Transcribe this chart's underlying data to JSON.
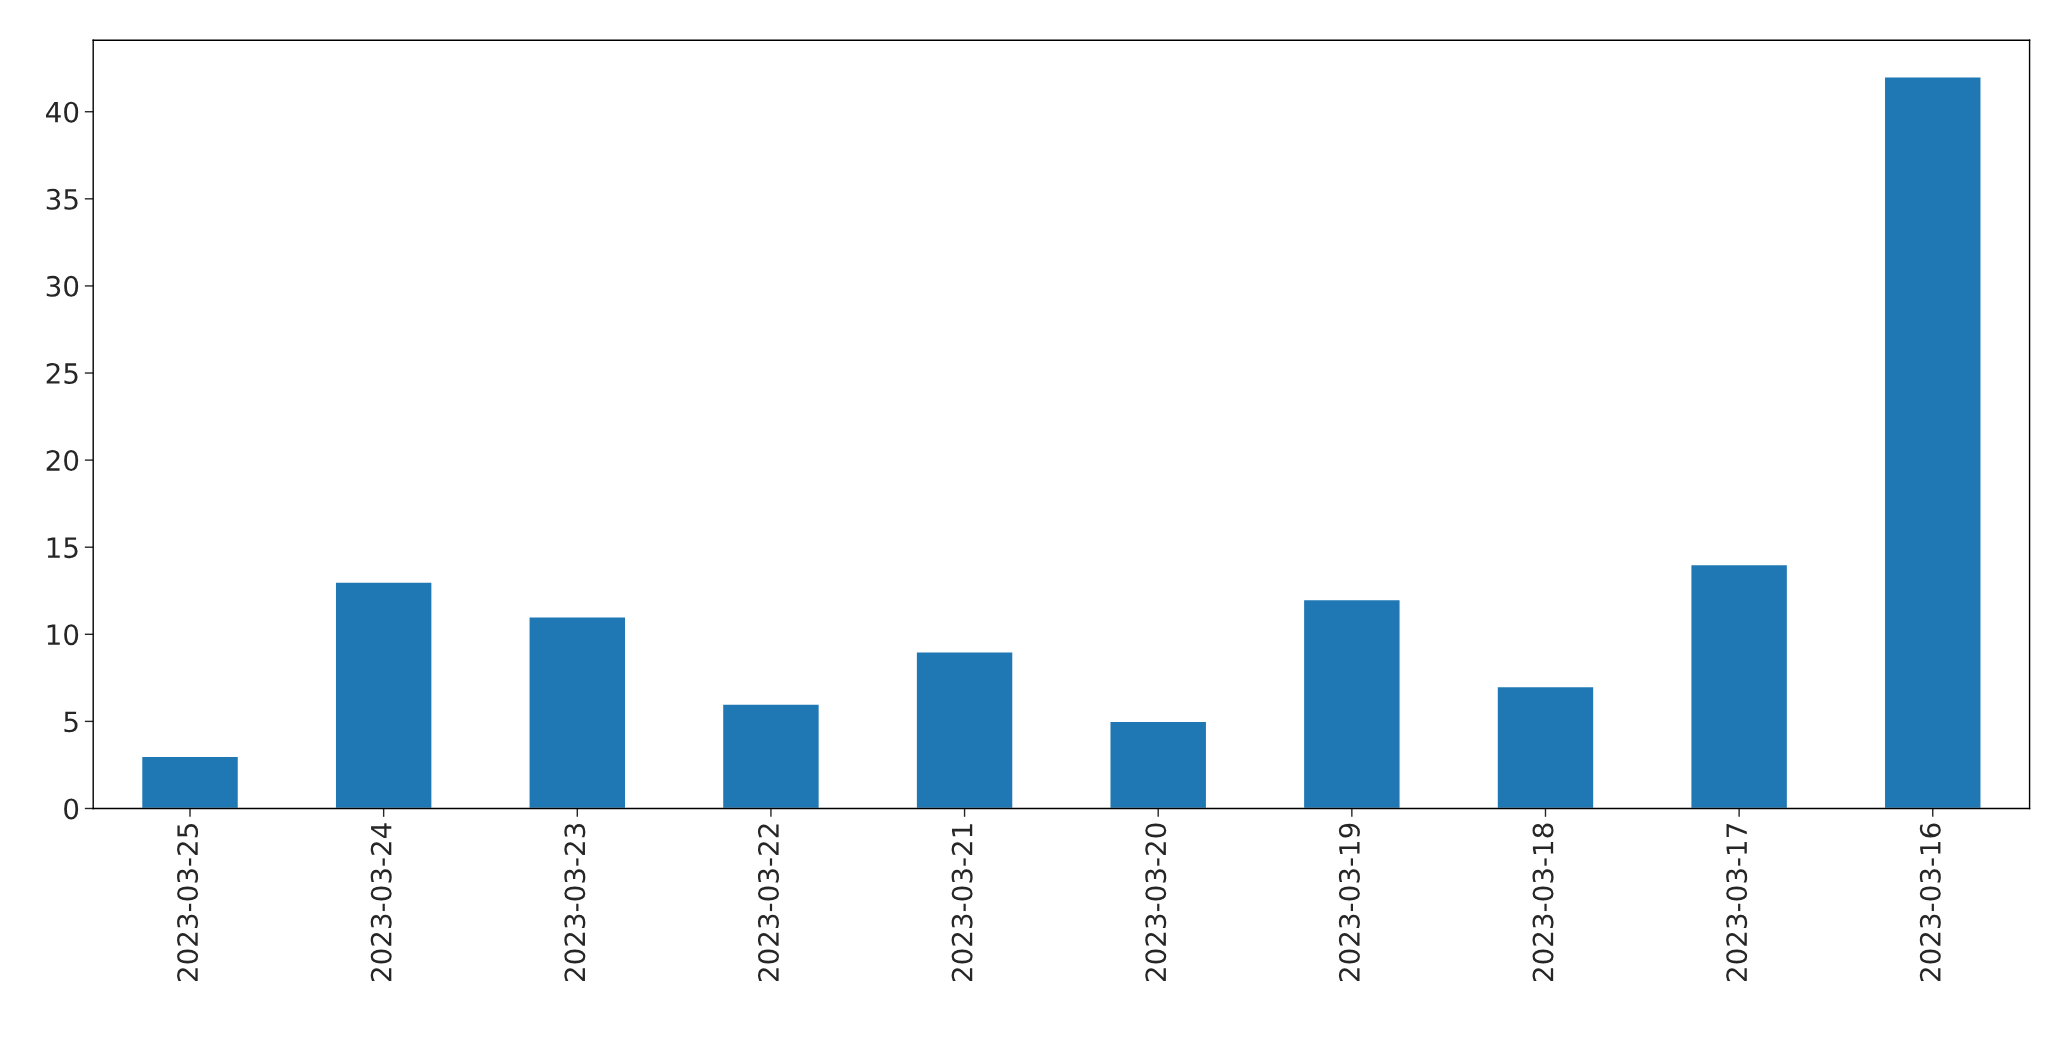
{
  "chart_data": {
    "type": "bar",
    "categories": [
      "2023-03-25",
      "2023-03-24",
      "2023-03-23",
      "2023-03-22",
      "2023-03-21",
      "2023-03-20",
      "2023-03-19",
      "2023-03-18",
      "2023-03-17",
      "2023-03-16"
    ],
    "values": [
      3,
      13,
      11,
      6,
      9,
      5,
      12,
      7,
      14,
      42
    ],
    "color": "#1f77b4",
    "ylim": [
      0,
      44.1
    ],
    "yticks": [
      0,
      5,
      10,
      15,
      20,
      25,
      30,
      35,
      40
    ],
    "grid": false,
    "legend": false
  }
}
